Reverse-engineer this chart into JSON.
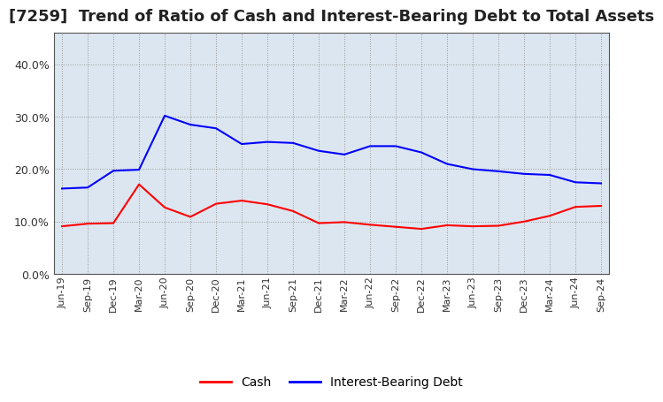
{
  "title": "[7259]  Trend of Ratio of Cash and Interest-Bearing Debt to Total Assets",
  "x_labels": [
    "Jun-19",
    "Sep-19",
    "Dec-19",
    "Mar-20",
    "Jun-20",
    "Sep-20",
    "Dec-20",
    "Mar-21",
    "Jun-21",
    "Sep-21",
    "Dec-21",
    "Mar-22",
    "Jun-22",
    "Sep-22",
    "Dec-22",
    "Mar-23",
    "Jun-23",
    "Sep-23",
    "Dec-23",
    "Mar-24",
    "Jun-24",
    "Sep-24"
  ],
  "cash": [
    0.091,
    0.096,
    0.097,
    0.171,
    0.127,
    0.109,
    0.134,
    0.14,
    0.133,
    0.12,
    0.097,
    0.099,
    0.094,
    0.09,
    0.086,
    0.093,
    0.091,
    0.092,
    0.1,
    0.111,
    0.128,
    0.13
  ],
  "debt": [
    0.163,
    0.165,
    0.197,
    0.199,
    0.302,
    0.285,
    0.278,
    0.248,
    0.252,
    0.25,
    0.235,
    0.228,
    0.244,
    0.244,
    0.232,
    0.21,
    0.2,
    0.196,
    0.191,
    0.189,
    0.175,
    0.173
  ],
  "cash_color": "#ff0000",
  "debt_color": "#0000ff",
  "ylim": [
    0.0,
    0.46
  ],
  "yticks": [
    0.0,
    0.1,
    0.2,
    0.3,
    0.4
  ],
  "background_color": "#ffffff",
  "plot_bg_color": "#dce6f0",
  "grid_color": "#999999",
  "title_fontsize": 13,
  "legend_labels": [
    "Cash",
    "Interest-Bearing Debt"
  ]
}
